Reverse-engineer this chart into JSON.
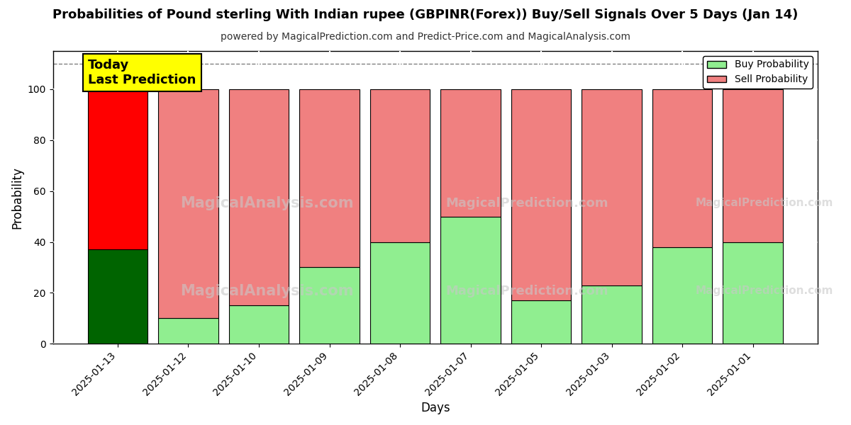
{
  "title": "Probabilities of Pound sterling With Indian rupee (GBPINR(Forex)) Buy/Sell Signals Over 5 Days (Jan 14)",
  "subtitle": "powered by MagicalPrediction.com and Predict-Price.com and MagicalAnalysis.com",
  "xlabel": "Days",
  "ylabel": "Probability",
  "days": [
    "2025-01-13",
    "2025-01-12",
    "2025-01-10",
    "2025-01-09",
    "2025-01-08",
    "2025-01-07",
    "2025-01-05",
    "2025-01-03",
    "2025-01-02",
    "2025-01-01"
  ],
  "buy_values": [
    37,
    10,
    15,
    30,
    40,
    50,
    17,
    23,
    38,
    40
  ],
  "sell_values": [
    63,
    90,
    85,
    70,
    60,
    50,
    83,
    77,
    62,
    60
  ],
  "buy_colors": [
    "#006400",
    "#90EE90",
    "#90EE90",
    "#90EE90",
    "#90EE90",
    "#90EE90",
    "#90EE90",
    "#90EE90",
    "#90EE90",
    "#90EE90"
  ],
  "sell_colors": [
    "#FF0000",
    "#F08080",
    "#F08080",
    "#F08080",
    "#F08080",
    "#F08080",
    "#F08080",
    "#F08080",
    "#F08080",
    "#F08080"
  ],
  "today_label_bg": "#FFFF00",
  "today_label_text": "Today\nLast Prediction",
  "legend_buy_color": "#90EE90",
  "legend_sell_color": "#F08080",
  "legend_buy_label": "Buy Probability",
  "legend_sell_label": "Sell Probability",
  "ylim": [
    0,
    115
  ],
  "dashed_line_y": 110,
  "grid_color": "#FFFFFF",
  "bg_color": "#FFFFFF",
  "bar_edge_color": "#000000",
  "bar_width": 0.85,
  "watermark1": "MagicalAnalysis.com",
  "watermark2": "MagicalPrediction.com",
  "watermark_color": "#C8C8C8"
}
